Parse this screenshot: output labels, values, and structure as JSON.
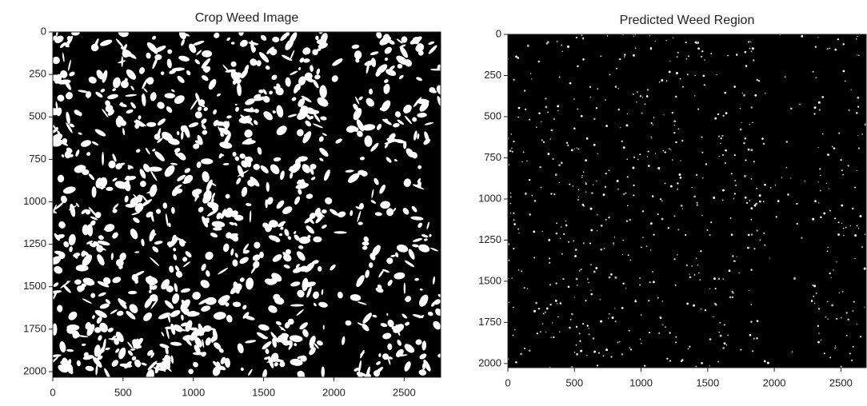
{
  "chart_data": [
    {
      "type": "image",
      "title": "Crop Weed Image",
      "xlim": [
        0,
        2760
      ],
      "ylim": [
        2033,
        0
      ],
      "xticks": [
        0,
        500,
        1000,
        1500,
        2000,
        2500
      ],
      "yticks": [
        0,
        250,
        500,
        750,
        1000,
        1250,
        1500,
        1750,
        2000
      ]
    },
    {
      "type": "image",
      "title": "Predicted Weed Region",
      "xlim": [
        0,
        2690
      ],
      "ylim": [
        2025,
        0
      ],
      "xticks": [
        0,
        500,
        1000,
        1500,
        2000,
        2500
      ],
      "yticks": [
        0,
        250,
        500,
        750,
        1000,
        1250,
        1500,
        1750,
        2000
      ]
    }
  ]
}
